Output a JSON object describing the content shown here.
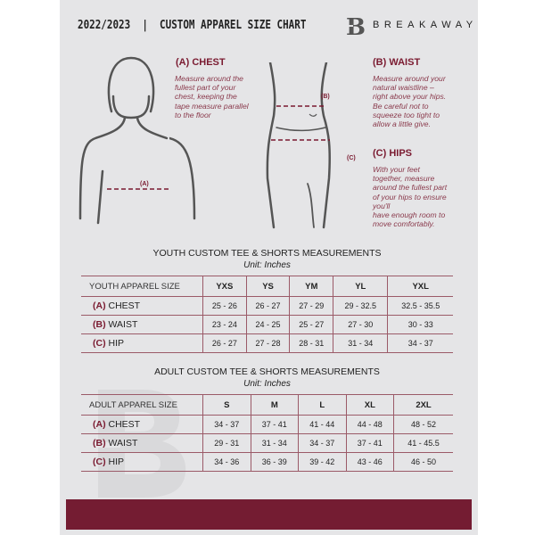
{
  "header": {
    "title": "2022/2023  |  CUSTOM APPAREL SIZE CHART",
    "brand": "BREAKAWAY",
    "logo_letter": "B"
  },
  "colors": {
    "accent": "#741c32",
    "background": "#e5e5e7"
  },
  "guide": {
    "chest": {
      "title": "(A) CHEST",
      "marker": "(A)",
      "desc": [
        "Measure around the",
        "fullest part of your",
        "chest, keeping the",
        "tape measure parallel",
        "to the floor"
      ]
    },
    "waist": {
      "title": "(B) WAIST",
      "marker": "(B)",
      "desc": [
        "Measure around your",
        "natural waistline –",
        "right above your hips.",
        "Be careful not to",
        "squeeze too tight to",
        "allow a little give."
      ]
    },
    "hips": {
      "title": "(C) HIPS",
      "marker": "(C)",
      "desc": [
        "With your feet",
        "together, measure",
        "around the fullest part",
        "of your hips to ensure",
        "you'll",
        "have enough room to",
        "move comfortably."
      ]
    }
  },
  "youth": {
    "title": "YOUTH CUSTOM TEE & SHORTS MEASUREMENTS",
    "unit": "Unit: Inches",
    "header": [
      "YOUTH APPAREL SIZE",
      "YXS",
      "YS",
      "YM",
      "YL",
      "YXL"
    ],
    "rows": [
      {
        "letter": "(A)",
        "label": "CHEST",
        "values": [
          "25 - 26",
          "26 - 27",
          "27 - 29",
          "29 - 32.5",
          "32.5 - 35.5"
        ]
      },
      {
        "letter": "(B)",
        "label": "WAIST",
        "values": [
          "23 - 24",
          "24 - 25",
          "25 - 27",
          "27 - 30",
          "30 - 33"
        ]
      },
      {
        "letter": "(C)",
        "label": "HIP",
        "values": [
          "26 - 27",
          "27 - 28",
          "28 - 31",
          "31 - 34",
          "34 - 37"
        ]
      }
    ]
  },
  "adult": {
    "title": "ADULT CUSTOM TEE & SHORTS MEASUREMENTS",
    "unit": "Unit: Inches",
    "header": [
      "ADULT APPAREL SIZE",
      "S",
      "M",
      "L",
      "XL",
      "2XL"
    ],
    "rows": [
      {
        "letter": "(A)",
        "label": "CHEST",
        "values": [
          "34 - 37",
          "37 - 41",
          "41 - 44",
          "44 - 48",
          "48 - 52"
        ]
      },
      {
        "letter": "(B)",
        "label": "WAIST",
        "values": [
          "29 - 31",
          "31 - 34",
          "34 - 37",
          "37 - 41",
          "41 - 45.5"
        ]
      },
      {
        "letter": "(C)",
        "label": "HIP",
        "values": [
          "34 - 36",
          "36 - 39",
          "39 - 42",
          "43 - 46",
          "46 - 50"
        ]
      }
    ]
  }
}
